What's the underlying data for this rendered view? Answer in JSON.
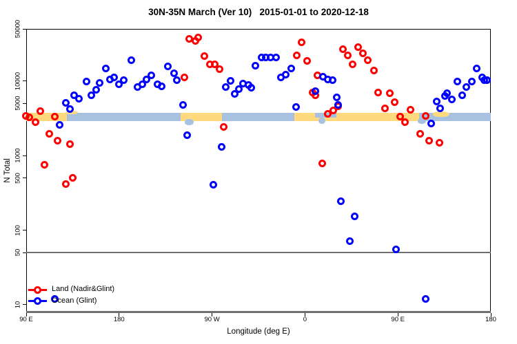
{
  "title": "30N-35N March (Ver 10)   2015-01-01 to 2020-12-18",
  "xlabel": "Longitude (deg E)",
  "ylabel": "N Total",
  "legend": {
    "items": [
      {
        "label": "Land (Nadir&Glint)",
        "color": "#ff0000"
      },
      {
        "label": "Ocean (Glint)",
        "color": "#0000ff"
      }
    ]
  },
  "colors": {
    "land_series": "#ff0000",
    "ocean_series": "#0000ff",
    "land_band": "#ffd97d",
    "ocean_band": "#a9c1e0",
    "reference_line": "#6f6f6f",
    "axis": "#000000"
  },
  "chart_data": {
    "type": "scatter",
    "title": "30N-35N March (Ver 10)   2015-01-01 to 2020-12-18",
    "xlabel": "Longitude (deg E)",
    "ylabel": "N Total",
    "x_axis": {
      "range": [
        90,
        540
      ],
      "ticks": [
        {
          "pos": 90,
          "label": "90 E"
        },
        {
          "pos": 180,
          "label": "180"
        },
        {
          "pos": 270,
          "label": "90 W"
        },
        {
          "pos": 360,
          "label": "0"
        },
        {
          "pos": 450,
          "label": "90 E"
        },
        {
          "pos": 540,
          "label": "180"
        }
      ]
    },
    "y_axis": {
      "log": true,
      "range": [
        10,
        50000
      ],
      "ticks": [
        {
          "value": 50000,
          "label": "50000"
        },
        {
          "value": 10000,
          "label": "10000"
        },
        {
          "value": 5000,
          "label": "5000"
        },
        {
          "value": 1000,
          "label": "1000"
        },
        {
          "value": 500,
          "label": "500"
        },
        {
          "value": 100,
          "label": "100"
        },
        {
          "value": 50,
          "label": "50"
        },
        {
          "value": 10,
          "label": "10"
        }
      ]
    },
    "reference_line_y": 50,
    "legend_position": "bottom-left",
    "series": [
      {
        "name": "Land (Nadir&Glint)",
        "color": "#ff0000",
        "points": [
          [
            89.6,
            3370
          ],
          [
            93.3,
            3230
          ],
          [
            98.7,
            2840
          ],
          [
            103.4,
            3990
          ],
          [
            108.0,
            760
          ],
          [
            112.7,
            1940
          ],
          [
            118.0,
            3300
          ],
          [
            120.7,
            1570
          ],
          [
            128.7,
            420
          ],
          [
            132.1,
            1440
          ],
          [
            135.4,
            508
          ],
          [
            242.9,
            11300
          ],
          [
            248.2,
            36400
          ],
          [
            253.6,
            34800
          ],
          [
            256.3,
            38700
          ],
          [
            262.9,
            21400
          ],
          [
            267.6,
            16800
          ],
          [
            272.3,
            16600
          ],
          [
            277.0,
            14300
          ],
          [
            281.6,
            2400
          ],
          [
            351.8,
            22300
          ],
          [
            356.4,
            32700
          ],
          [
            362.4,
            18800
          ],
          [
            367.1,
            7080
          ],
          [
            369.8,
            6500
          ],
          [
            371.8,
            11800
          ],
          [
            376.5,
            780
          ],
          [
            381.8,
            3590
          ],
          [
            387.2,
            4070
          ],
          [
            391.8,
            4630
          ],
          [
            396.5,
            27000
          ],
          [
            401.2,
            22300
          ],
          [
            405.9,
            16900
          ],
          [
            411.2,
            28200
          ],
          [
            415.9,
            23300
          ],
          [
            420.5,
            19200
          ],
          [
            426.6,
            13700
          ],
          [
            430.6,
            7080
          ],
          [
            437.3,
            4260
          ],
          [
            441.9,
            6930
          ],
          [
            446.6,
            5260
          ],
          [
            451.9,
            3300
          ],
          [
            456.6,
            2840
          ],
          [
            462.0,
            4160
          ],
          [
            471.3,
            1980
          ],
          [
            476.6,
            3440
          ],
          [
            480.0,
            1570
          ],
          [
            490.0,
            1500
          ]
        ]
      },
      {
        "name": "Ocean (Glint)",
        "color": "#0000ff",
        "points": [
          [
            117.4,
            12
          ],
          [
            122.7,
            2610
          ],
          [
            128.1,
            5150
          ],
          [
            132.7,
            4170
          ],
          [
            136.7,
            6500
          ],
          [
            141.4,
            5850
          ],
          [
            148.1,
            9950
          ],
          [
            153.4,
            6500
          ],
          [
            158.1,
            7710
          ],
          [
            161.4,
            9530
          ],
          [
            166.8,
            14600
          ],
          [
            171.4,
            10600
          ],
          [
            174.8,
            11100
          ],
          [
            180.1,
            9140
          ],
          [
            184.8,
            10200
          ],
          [
            191.5,
            19200
          ],
          [
            197.5,
            8220
          ],
          [
            202.8,
            9140
          ],
          [
            206.8,
            10400
          ],
          [
            211.5,
            11800
          ],
          [
            216.9,
            9140
          ],
          [
            221.5,
            8570
          ],
          [
            226.9,
            15600
          ],
          [
            232.9,
            12600
          ],
          [
            236.2,
            10200
          ],
          [
            241.6,
            4830
          ],
          [
            246.2,
            1860
          ],
          [
            271.6,
            411
          ],
          [
            279.6,
            1320
          ],
          [
            283.0,
            8390
          ],
          [
            287.7,
            10000
          ],
          [
            291.7,
            6700
          ],
          [
            295.7,
            7870
          ],
          [
            300.3,
            9330
          ],
          [
            305.0,
            8770
          ],
          [
            308.3,
            8050
          ],
          [
            311.7,
            16000
          ],
          [
            317.7,
            20900
          ],
          [
            322.3,
            20500
          ],
          [
            327.0,
            20900
          ],
          [
            331.7,
            20700
          ],
          [
            337.0,
            11300
          ],
          [
            341.7,
            12100
          ],
          [
            347.0,
            14600
          ],
          [
            351.1,
            4440
          ],
          [
            370.4,
            7240
          ],
          [
            377.1,
            11500
          ],
          [
            381.8,
            10400
          ],
          [
            386.5,
            10200
          ],
          [
            390.5,
            5980
          ],
          [
            391.8,
            4830
          ],
          [
            394.5,
            242
          ],
          [
            403.2,
            72
          ],
          [
            407.9,
            152
          ],
          [
            447.9,
            55
          ],
          [
            476.6,
            12
          ],
          [
            482.0,
            2670
          ],
          [
            487.3,
            5370
          ],
          [
            490.6,
            4260
          ],
          [
            495.3,
            6240
          ],
          [
            497.3,
            6790
          ],
          [
            502.0,
            5610
          ],
          [
            507.3,
            9950
          ],
          [
            512.0,
            6500
          ],
          [
            516.6,
            8220
          ],
          [
            521.9,
            9950
          ],
          [
            526.6,
            14600
          ],
          [
            531.9,
            11300
          ],
          [
            533.9,
            10200
          ],
          [
            536.6,
            10200
          ]
        ]
      }
    ],
    "surface_band": {
      "description": "land/ocean strip along 30N-35N",
      "value_top": 3750,
      "value_bottom": 2900,
      "land_color": "#ffd97d",
      "ocean_color": "#a9c1e0",
      "segments": [
        {
          "from": 90,
          "to": 129.4,
          "type": "land"
        },
        {
          "from": 129.4,
          "to": 239.6,
          "type": "ocean"
        },
        {
          "from": 239.6,
          "to": 279.6,
          "type": "land"
        },
        {
          "from": 279.6,
          "to": 349.8,
          "type": "ocean"
        },
        {
          "from": 349.8,
          "to": 470.6,
          "type": "land"
        },
        {
          "from": 470.6,
          "to": 540,
          "type": "ocean"
        }
      ],
      "patches": [
        {
          "from": 128,
          "to": 140,
          "top": -3,
          "height": 5,
          "type": "land",
          "blob": true
        },
        {
          "from": 243.5,
          "to": 252.5,
          "top": 9,
          "height": 9,
          "type": "ocean",
          "blob": true
        },
        {
          "from": 369.8,
          "to": 390.5,
          "top": 0,
          "height": 7,
          "type": "ocean",
          "blob": false
        },
        {
          "from": 373,
          "to": 380,
          "top": 7,
          "height": 9,
          "type": "ocean",
          "blob": true
        },
        {
          "from": 469,
          "to": 477,
          "top": 8,
          "height": 8,
          "type": "ocean",
          "blob": true
        },
        {
          "from": 484,
          "to": 500,
          "top": -2,
          "height": 8,
          "type": "land",
          "blob": true
        }
      ]
    }
  }
}
